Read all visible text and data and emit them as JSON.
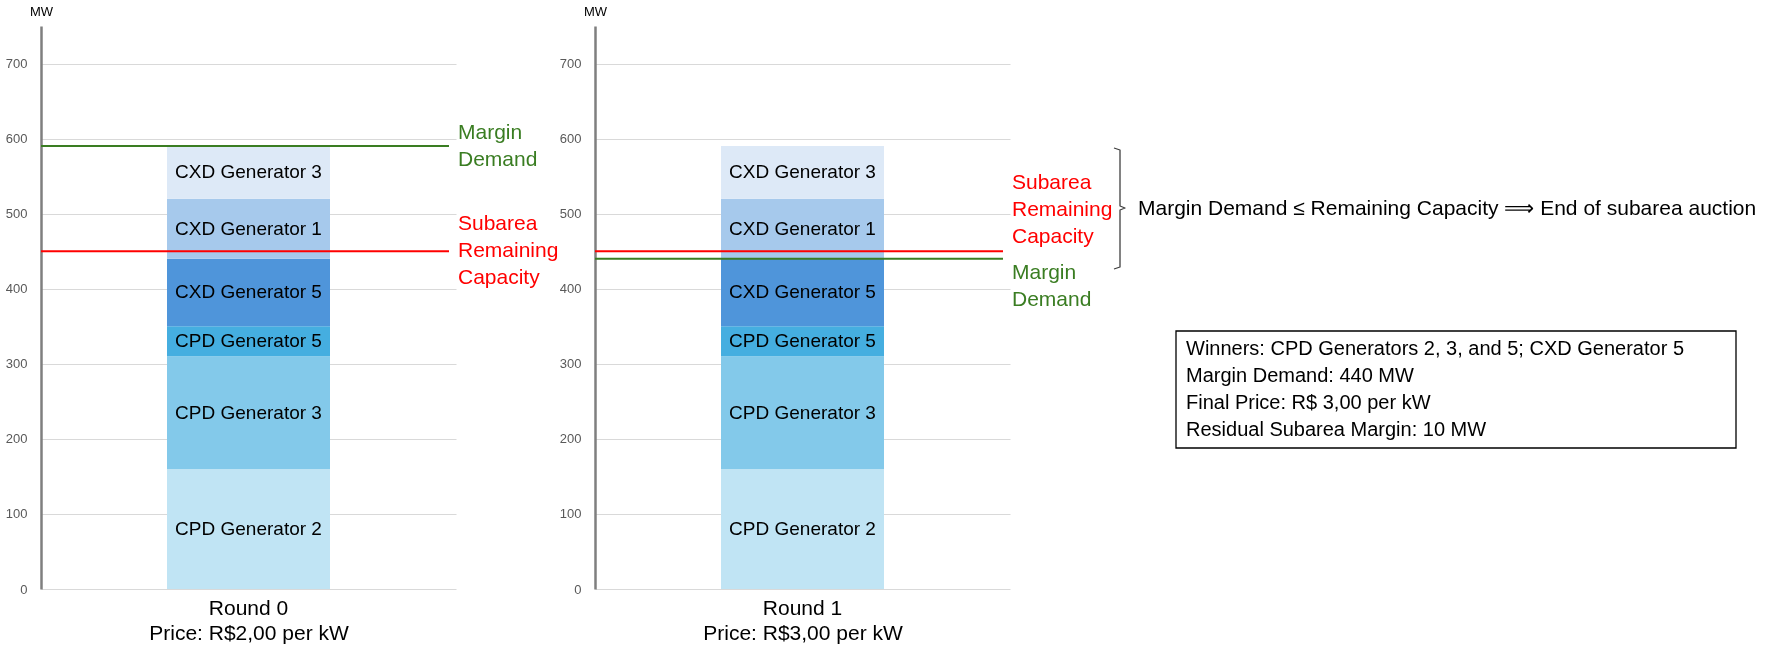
{
  "chart_data": [
    {
      "type": "bar",
      "stacked": true,
      "categories": [
        "Round 0"
      ],
      "xlabel": "Price: R$2,00 per kW",
      "ylabel": "MW",
      "ylim": [
        0,
        750
      ],
      "yticks": [
        0,
        100,
        200,
        300,
        400,
        500,
        600,
        700
      ],
      "grid": "y",
      "series": [
        {
          "name": "CPD Generator 2",
          "color": "#c0e4f4",
          "values": [
            160
          ]
        },
        {
          "name": "CPD Generator 3",
          "color": "#83c9ea",
          "values": [
            150
          ]
        },
        {
          "name": "CPD Generator 5",
          "color": "#45aee0",
          "values": [
            40
          ]
        },
        {
          "name": "CXD Generator 5",
          "color": "#4f95da",
          "values": [
            90
          ]
        },
        {
          "name": "CXD Generator 1",
          "color": "#a6c9ec",
          "values": [
            80
          ]
        },
        {
          "name": "CXD Generator 3",
          "color": "#dde9f7",
          "values": [
            70
          ]
        }
      ],
      "ref_lines": [
        {
          "axis": "y",
          "value": 590,
          "label": "Margin Demand",
          "color": "#3a7d22"
        },
        {
          "axis": "y",
          "value": 450,
          "label": "Subarea Remaining Capacity",
          "color": "#ff0000"
        }
      ]
    },
    {
      "type": "bar",
      "stacked": true,
      "categories": [
        "Round 1"
      ],
      "xlabel": "Price: R$3,00 per kW",
      "ylabel": "MW",
      "ylim": [
        0,
        750
      ],
      "yticks": [
        0,
        100,
        200,
        300,
        400,
        500,
        600,
        700
      ],
      "grid": "y",
      "series": [
        {
          "name": "CPD Generator 2",
          "color": "#c0e4f4",
          "values": [
            160
          ]
        },
        {
          "name": "CPD Generator 3",
          "color": "#83c9ea",
          "values": [
            150
          ]
        },
        {
          "name": "CPD Generator 5",
          "color": "#45aee0",
          "values": [
            40
          ]
        },
        {
          "name": "CXD Generator 5",
          "color": "#4f95da",
          "values": [
            90
          ]
        },
        {
          "name": "CXD Generator 1",
          "color": "#a6c9ec",
          "values": [
            80
          ]
        },
        {
          "name": "CXD Generator 3",
          "color": "#dde9f7",
          "values": [
            70
          ]
        }
      ],
      "ref_lines": [
        {
          "axis": "y",
          "value": 450,
          "label": "Subarea Remaining Capacity",
          "color": "#ff0000"
        },
        {
          "axis": "y",
          "value": 440,
          "label": "Margin Demand",
          "color": "#3a7d22"
        }
      ]
    },
    {
      "type": "other",
      "annotations": [
        "Margin Demand ≤ Remaining Capacity ⟹ End of subarea auction",
        "Winners: CPD Generators 2, 3, and 5; CXD Generator 5",
        "Margin Demand: 440 MW",
        "Final Price: R$ 3,00 per kW",
        "Residual Subarea Margin: 10 MW"
      ]
    }
  ]
}
